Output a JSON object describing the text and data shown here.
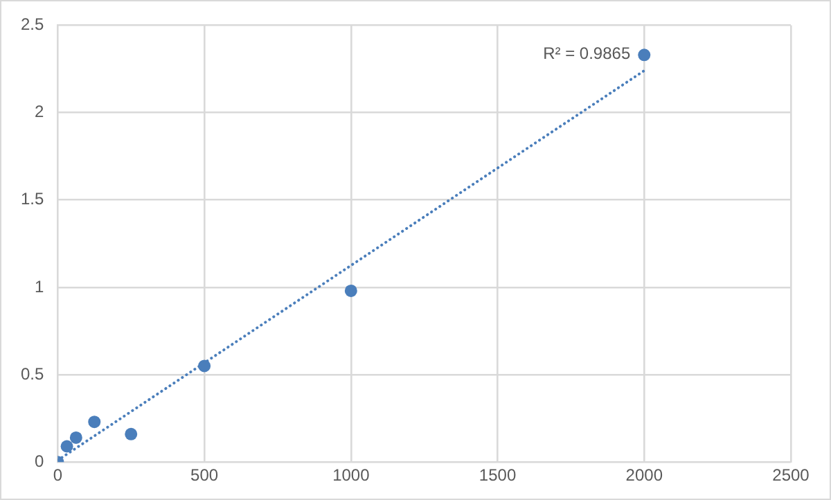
{
  "chart_data": {
    "type": "scatter",
    "xlim": [
      0,
      2500
    ],
    "xticks": [
      0,
      500,
      1000,
      1500,
      2000,
      2500
    ],
    "ylim": [
      0,
      2.5
    ],
    "yticks": [
      0,
      0.5,
      1,
      1.5,
      2,
      2.5
    ],
    "grid": true,
    "legend": false,
    "marker": "circle",
    "series": [
      {
        "color": "#4a7ebb",
        "x": [
          0,
          31.25,
          62.5,
          125,
          250,
          500,
          1000,
          2000
        ],
        "values": [
          0,
          0.09,
          0.14,
          0.23,
          0.16,
          0.55,
          0.98,
          2.33
        ]
      },
      {
        "type": "line",
        "color": "#4a7ebb",
        "line_style": "dotted",
        "marker": "none",
        "x": [
          0,
          2000
        ],
        "values": [
          0.01,
          2.24
        ]
      }
    ],
    "annotations": [
      "R² = 0.9865"
    ]
  }
}
